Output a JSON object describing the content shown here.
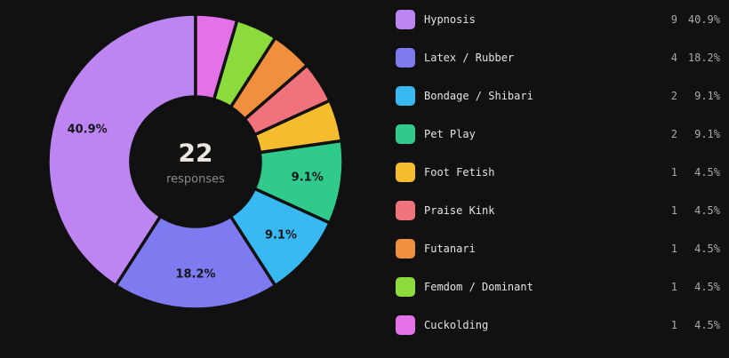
{
  "theme": {
    "background": "#111111",
    "slice_gap_color": "#111111",
    "slice_label_color": "#16161c",
    "legend_text_color": "#e3e3e3",
    "legend_value_color": "#a9a9a9",
    "center_value_color": "#ece8e1",
    "center_caption_color": "#8a8a8a"
  },
  "chart_data": {
    "type": "pie",
    "donut": true,
    "title": "",
    "legend_position": "right",
    "total_responses": 22,
    "center": {
      "value": "22",
      "caption": "responses"
    },
    "categories": [
      "Hypnosis",
      "Latex / Rubber",
      "Bondage / Shibari",
      "Pet Play",
      "Foot Fetish",
      "Praise Kink",
      "Futanari",
      "Femdom / Dominant",
      "Cuckolding"
    ],
    "values": [
      9,
      4,
      2,
      2,
      1,
      1,
      1,
      1,
      1
    ],
    "percent_labels": [
      "40.9%",
      "18.2%",
      "9.1%",
      "9.1%",
      "4.5%",
      "4.5%",
      "4.5%",
      "4.5%",
      "4.5%"
    ],
    "colors": [
      "#bd85f2",
      "#7d7bef",
      "#38b9f2",
      "#2fca8c",
      "#f5bd2d",
      "#f0727c",
      "#f08f3e",
      "#8cdb3c",
      "#e571e9"
    ],
    "slice_label_shown": [
      true,
      true,
      true,
      true,
      false,
      false,
      false,
      false,
      false
    ],
    "direction": "counterclockwise-from-top"
  }
}
